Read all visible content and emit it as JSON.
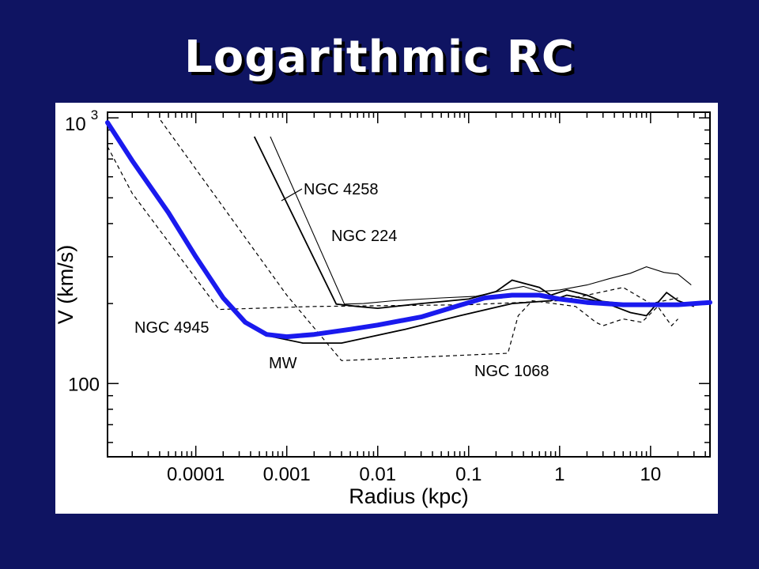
{
  "slide": {
    "title": "Logarithmic RC"
  },
  "colors": {
    "background": "#0f1462",
    "title": "#ffffff",
    "fit_curve": "#1a1aee",
    "panel": "#ffffff"
  },
  "chart_data": {
    "type": "line",
    "title": "",
    "xlabel": "Radius (kpc)",
    "ylabel": "V (km/s)",
    "xscale": "log",
    "yscale": "log",
    "xlim": [
      1.07e-05,
      45
    ],
    "ylim": [
      53,
      1050
    ],
    "x_ticks": [
      {
        "value": 0.0001,
        "label": "0.0001"
      },
      {
        "value": 0.001,
        "label": "0.001"
      },
      {
        "value": 0.01,
        "label": "0.01"
      },
      {
        "value": 0.1,
        "label": "0.1"
      },
      {
        "value": 1,
        "label": "1"
      },
      {
        "value": 10,
        "label": "10"
      }
    ],
    "y_ticks": [
      {
        "value": 100,
        "base": "100",
        "exp": ""
      },
      {
        "value": 1000,
        "base": "10",
        "exp": "3"
      }
    ],
    "annotations": [
      "NGC 4258",
      "NGC 224",
      "NGC 4945",
      "MW",
      "NGC 1068"
    ],
    "series": [
      {
        "name": "NGC 4258",
        "style": "thin-solid",
        "x": [
          0.00066,
          0.0043,
          0.007,
          0.015,
          0.05,
          0.12,
          0.25,
          0.4,
          0.6,
          1.0,
          2.0,
          3.5,
          6.0,
          9.0,
          14,
          20,
          28
        ],
        "y": [
          850,
          199,
          200,
          205,
          210,
          213,
          225,
          232,
          222,
          225,
          235,
          248,
          260,
          275,
          262,
          258,
          235
        ]
      },
      {
        "name": "NGC 224",
        "style": "solid",
        "x": [
          0.00044,
          0.0035,
          0.006,
          0.01,
          0.03,
          0.1,
          0.2,
          0.3,
          0.6,
          0.8,
          1.2,
          2.0,
          4.0,
          6.0,
          9.0,
          15,
          20,
          30
        ],
        "y": [
          850,
          199,
          195,
          192,
          200,
          208,
          222,
          245,
          230,
          215,
          225,
          215,
          195,
          185,
          180,
          220,
          205,
          195
        ]
      },
      {
        "name": "NGC 4945",
        "style": "dashed",
        "x": [
          1.07e-05,
          2e-05,
          0.00018,
          0.002,
          0.1,
          1.0,
          2.0,
          5.0,
          10,
          20
        ],
        "y": [
          780,
          520,
          190,
          195,
          198,
          205,
          215,
          230,
          200,
          210
        ]
      },
      {
        "name": "NGC 1068",
        "style": "dashed",
        "x": [
          4.1e-05,
          0.001,
          0.004,
          0.27,
          0.35,
          0.5,
          1.5,
          2.5,
          3.0,
          5.0,
          8.0,
          12,
          17,
          20
        ],
        "y": [
          980,
          215,
          122,
          130,
          180,
          205,
          195,
          170,
          165,
          175,
          170,
          195,
          165,
          175
        ]
      },
      {
        "name": "MW",
        "style": "solid",
        "x": [
          0.00036,
          0.00045,
          0.0007,
          0.0015,
          0.004,
          0.02,
          0.08,
          0.3,
          0.8,
          1.2,
          2.5,
          5.0,
          10
        ],
        "y": [
          170,
          163,
          150,
          142,
          142,
          160,
          180,
          200,
          205,
          215,
          205,
          200,
          198
        ]
      },
      {
        "name": "",
        "style": "fit",
        "x": [
          1.07e-05,
          2e-05,
          5e-05,
          0.0001,
          0.0002,
          0.00035,
          0.0006,
          0.001,
          0.002,
          0.005,
          0.01,
          0.03,
          0.08,
          0.15,
          0.3,
          0.6,
          1.0,
          2.0,
          5.0,
          10,
          20,
          45
        ],
        "y": [
          960,
          690,
          440,
          300,
          210,
          170,
          153,
          150,
          153,
          160,
          166,
          178,
          197,
          210,
          215,
          215,
          208,
          202,
          198,
          198,
          198,
          202
        ]
      }
    ]
  }
}
